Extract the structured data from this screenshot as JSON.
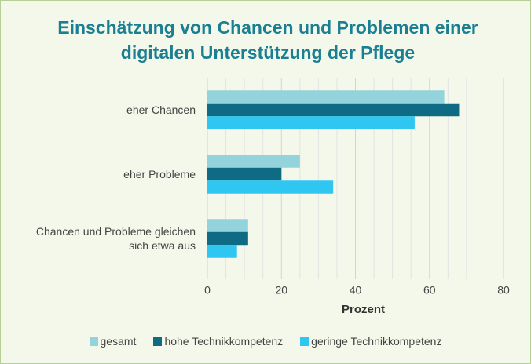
{
  "chart_data": {
    "type": "hbar",
    "title": "Einschätzung von Chancen und Problemen einer digitalen Unterstützung der Pflege",
    "x_label": "Prozent",
    "categories": [
      "eher Chancen",
      "eher Probleme",
      "Chancen und Probleme gleichen sich etwa aus"
    ],
    "series": [
      {
        "name": "gesamt",
        "color": "#93d3dc",
        "values": [
          64,
          25,
          11
        ]
      },
      {
        "name": "hohe Technikkompetenz",
        "color": "#0f6a83",
        "values": [
          68,
          20,
          11
        ]
      },
      {
        "name": "geringe Technikkompetenz",
        "color": "#2fc7f2",
        "values": [
          56,
          34,
          8
        ]
      }
    ],
    "xlim": [
      0,
      80
    ],
    "xticks": [
      0,
      20,
      40,
      60,
      80
    ],
    "minor_xticks": [
      5,
      10,
      15,
      25,
      30,
      35,
      45,
      50,
      55,
      65,
      70,
      75
    ],
    "grid": true,
    "legend": "bottom"
  }
}
